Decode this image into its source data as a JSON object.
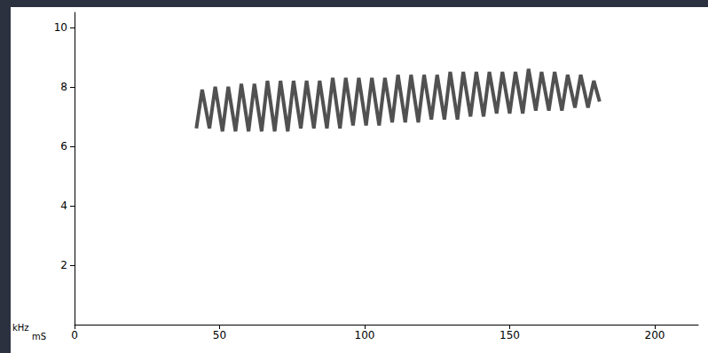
{
  "chart_data": {
    "type": "line",
    "x_label": "mS",
    "y_label": "kHz",
    "x": [
      42,
      44,
      46.5,
      48.5,
      51,
      53,
      55.5,
      57.5,
      60,
      62,
      64.5,
      66.5,
      69,
      71,
      73.5,
      75.5,
      78,
      80,
      82.5,
      84.5,
      87,
      89,
      91.5,
      93.5,
      96,
      98,
      100.5,
      102.5,
      105,
      107,
      109.5,
      111.5,
      114,
      116,
      118.5,
      120.5,
      123,
      125,
      127.5,
      129.5,
      132,
      134,
      136.5,
      138.5,
      141,
      143,
      145.5,
      147.5,
      150,
      152,
      154.5,
      156.5,
      159,
      161,
      163.5,
      165.5,
      168,
      170,
      172.5,
      174.5,
      177,
      179,
      181
    ],
    "values": [
      6.6,
      7.9,
      6.6,
      8.0,
      6.5,
      8.0,
      6.5,
      8.1,
      6.5,
      8.1,
      6.5,
      8.2,
      6.5,
      8.2,
      6.5,
      8.2,
      6.6,
      8.2,
      6.6,
      8.2,
      6.6,
      8.3,
      6.6,
      8.3,
      6.7,
      8.3,
      6.7,
      8.3,
      6.7,
      8.3,
      6.8,
      8.4,
      6.8,
      8.4,
      6.8,
      8.4,
      6.9,
      8.4,
      6.9,
      8.5,
      6.9,
      8.5,
      7.0,
      8.5,
      7.0,
      8.5,
      7.1,
      8.5,
      7.1,
      8.5,
      7.1,
      8.6,
      7.2,
      8.5,
      7.2,
      8.5,
      7.2,
      8.4,
      7.3,
      8.4,
      7.3,
      8.2,
      7.5
    ],
    "color": "#333333",
    "xlim": [
      0,
      215
    ],
    "xticks": [
      0,
      50,
      100,
      150,
      200
    ],
    "ylim": [
      0,
      10.5
    ],
    "yticks": [
      2,
      4,
      6,
      8,
      10
    ],
    "grid": false
  }
}
